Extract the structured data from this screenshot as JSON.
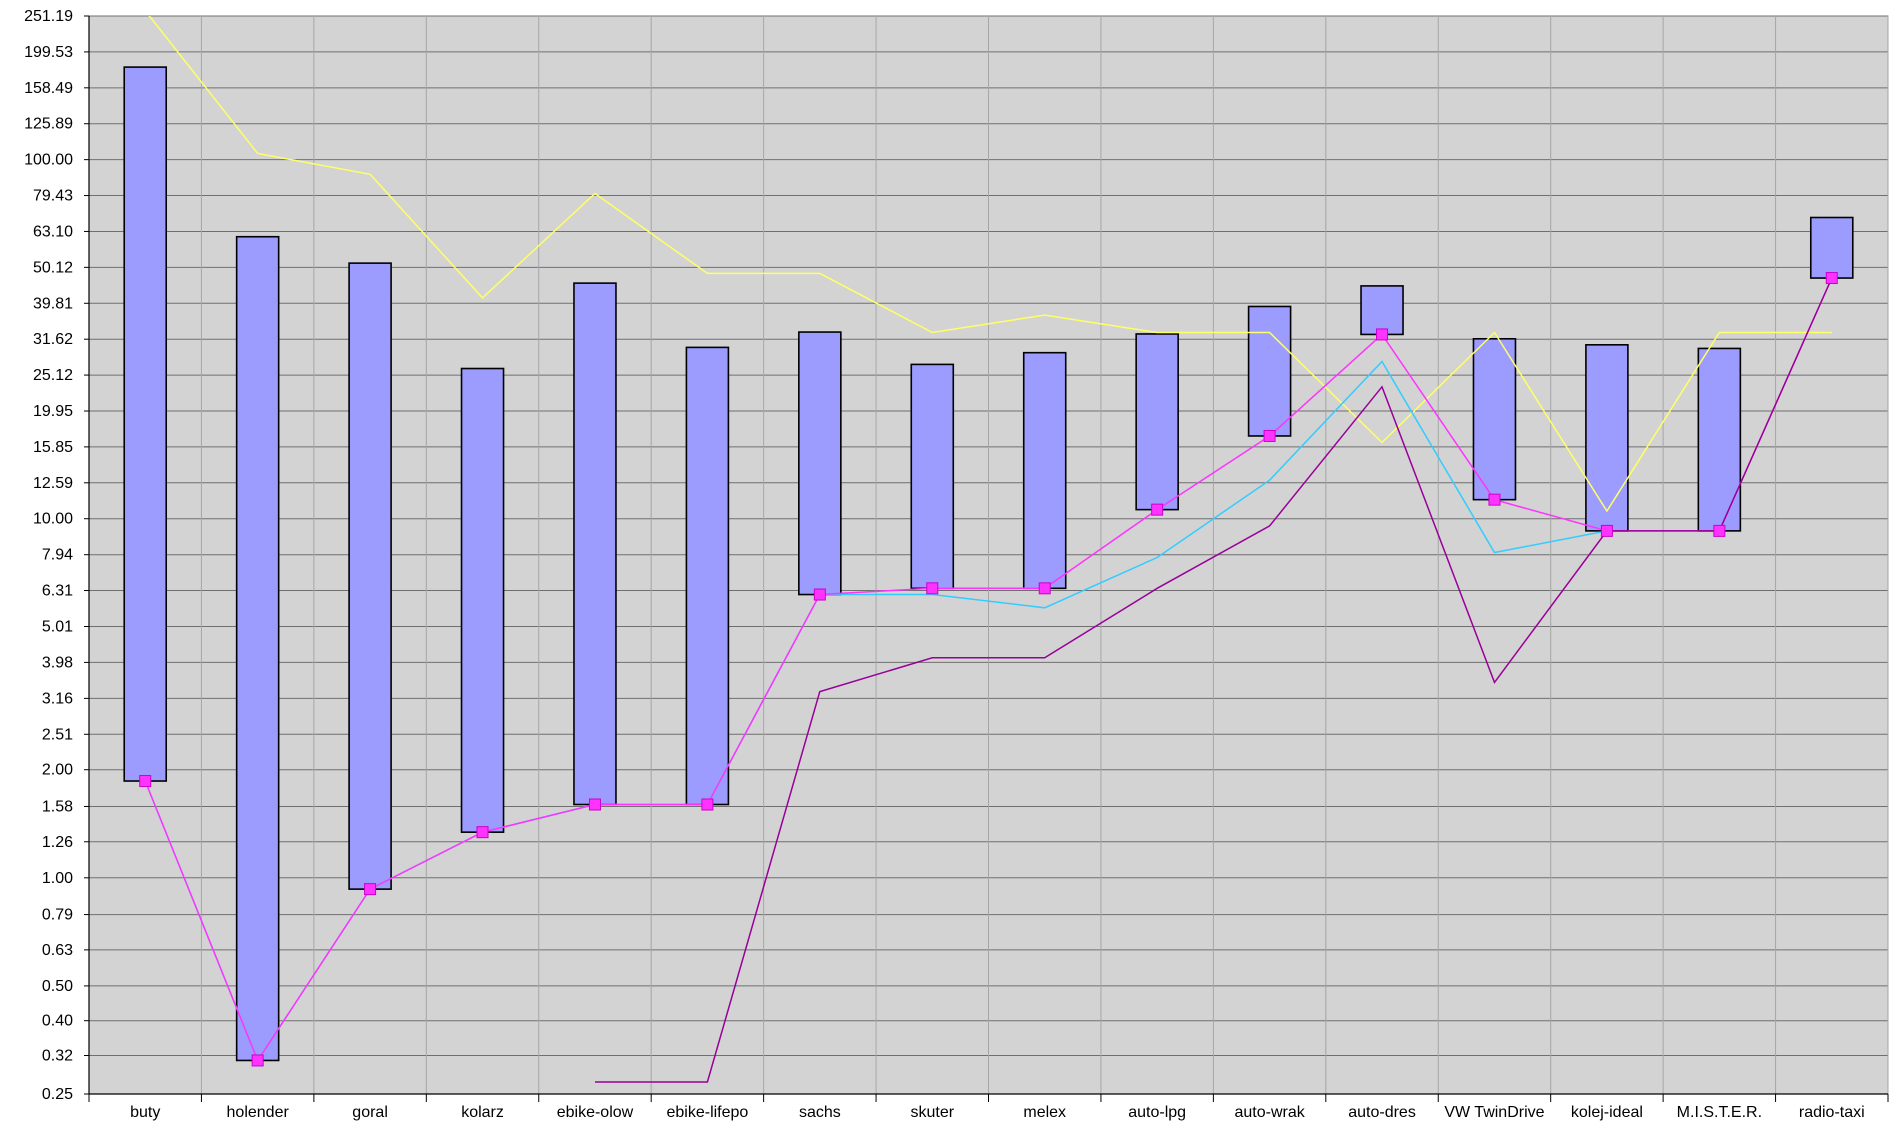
{
  "chart_data": {
    "type": "bar",
    "scale": "log",
    "grid": true,
    "legend": "none",
    "ylim": [
      0.25,
      251.19
    ],
    "y_ticks": [
      "251.19",
      "199.53",
      "158.49",
      "125.89",
      "100.00",
      "79.43",
      "63.10",
      "50.12",
      "39.81",
      "31.62",
      "25.12",
      "19.95",
      "15.85",
      "12.59",
      "10.00",
      "7.94",
      "6.31",
      "5.01",
      "3.98",
      "3.16",
      "2.51",
      "2.00",
      "1.58",
      "1.26",
      "1.00",
      "0.79",
      "0.63",
      "0.50",
      "0.40",
      "0.32",
      "0.25"
    ],
    "categories": [
      "buty",
      "holender",
      "goral",
      "kolarz",
      "ebike-olow",
      "ebike-lifepo",
      "sachs",
      "skuter",
      "melex",
      "auto-lpg",
      "auto-wrak",
      "auto-dres",
      "VW TwinDrive",
      "kolej-ideal",
      "M.I.S.T.E.R.",
      "radio-taxi"
    ],
    "bars": {
      "low": [
        1.86,
        0.31,
        0.93,
        1.34,
        1.6,
        1.6,
        6.15,
        6.4,
        6.4,
        10.6,
        17.0,
        32.6,
        11.3,
        9.25,
        9.25,
        46.8
      ],
      "high": [
        181.0,
        61.0,
        51.5,
        26.2,
        45.3,
        30.0,
        33.1,
        26.9,
        29.0,
        32.7,
        39.0,
        44.5,
        31.7,
        30.5,
        29.8,
        69.0
      ]
    },
    "series": [
      {
        "color": "#ffff66",
        "values": [
          260,
          104,
          91,
          41.2,
          80.5,
          48.2,
          48.2,
          33.0,
          36.9,
          33.0,
          33.0,
          16.3,
          33.0,
          10.5,
          33.0,
          33.0
        ]
      },
      {
        "color": "#33ccff",
        "values": [
          1.86,
          0.31,
          0.93,
          1.34,
          1.6,
          1.6,
          6.15,
          6.15,
          5.65,
          7.8,
          12.8,
          27.4,
          8.05,
          9.25,
          null,
          null
        ]
      },
      {
        "color": "#ff33ff",
        "values": [
          1.86,
          0.31,
          0.93,
          1.34,
          1.6,
          1.6,
          6.15,
          6.4,
          6.4,
          10.6,
          17.0,
          32.6,
          11.3,
          9.25,
          9.25,
          46.8
        ]
      },
      {
        "color": "#990099",
        "values": [
          null,
          null,
          null,
          null,
          0.27,
          0.27,
          3.3,
          4.1,
          4.1,
          6.4,
          9.55,
          23.3,
          3.5,
          9.25,
          9.25,
          46.8
        ]
      }
    ],
    "colors": {
      "plot_bg": "#d3d3d3",
      "bar_fill": "#9c9cff",
      "marker": "#ff33ff",
      "grid": "#a6a6a6"
    }
  }
}
